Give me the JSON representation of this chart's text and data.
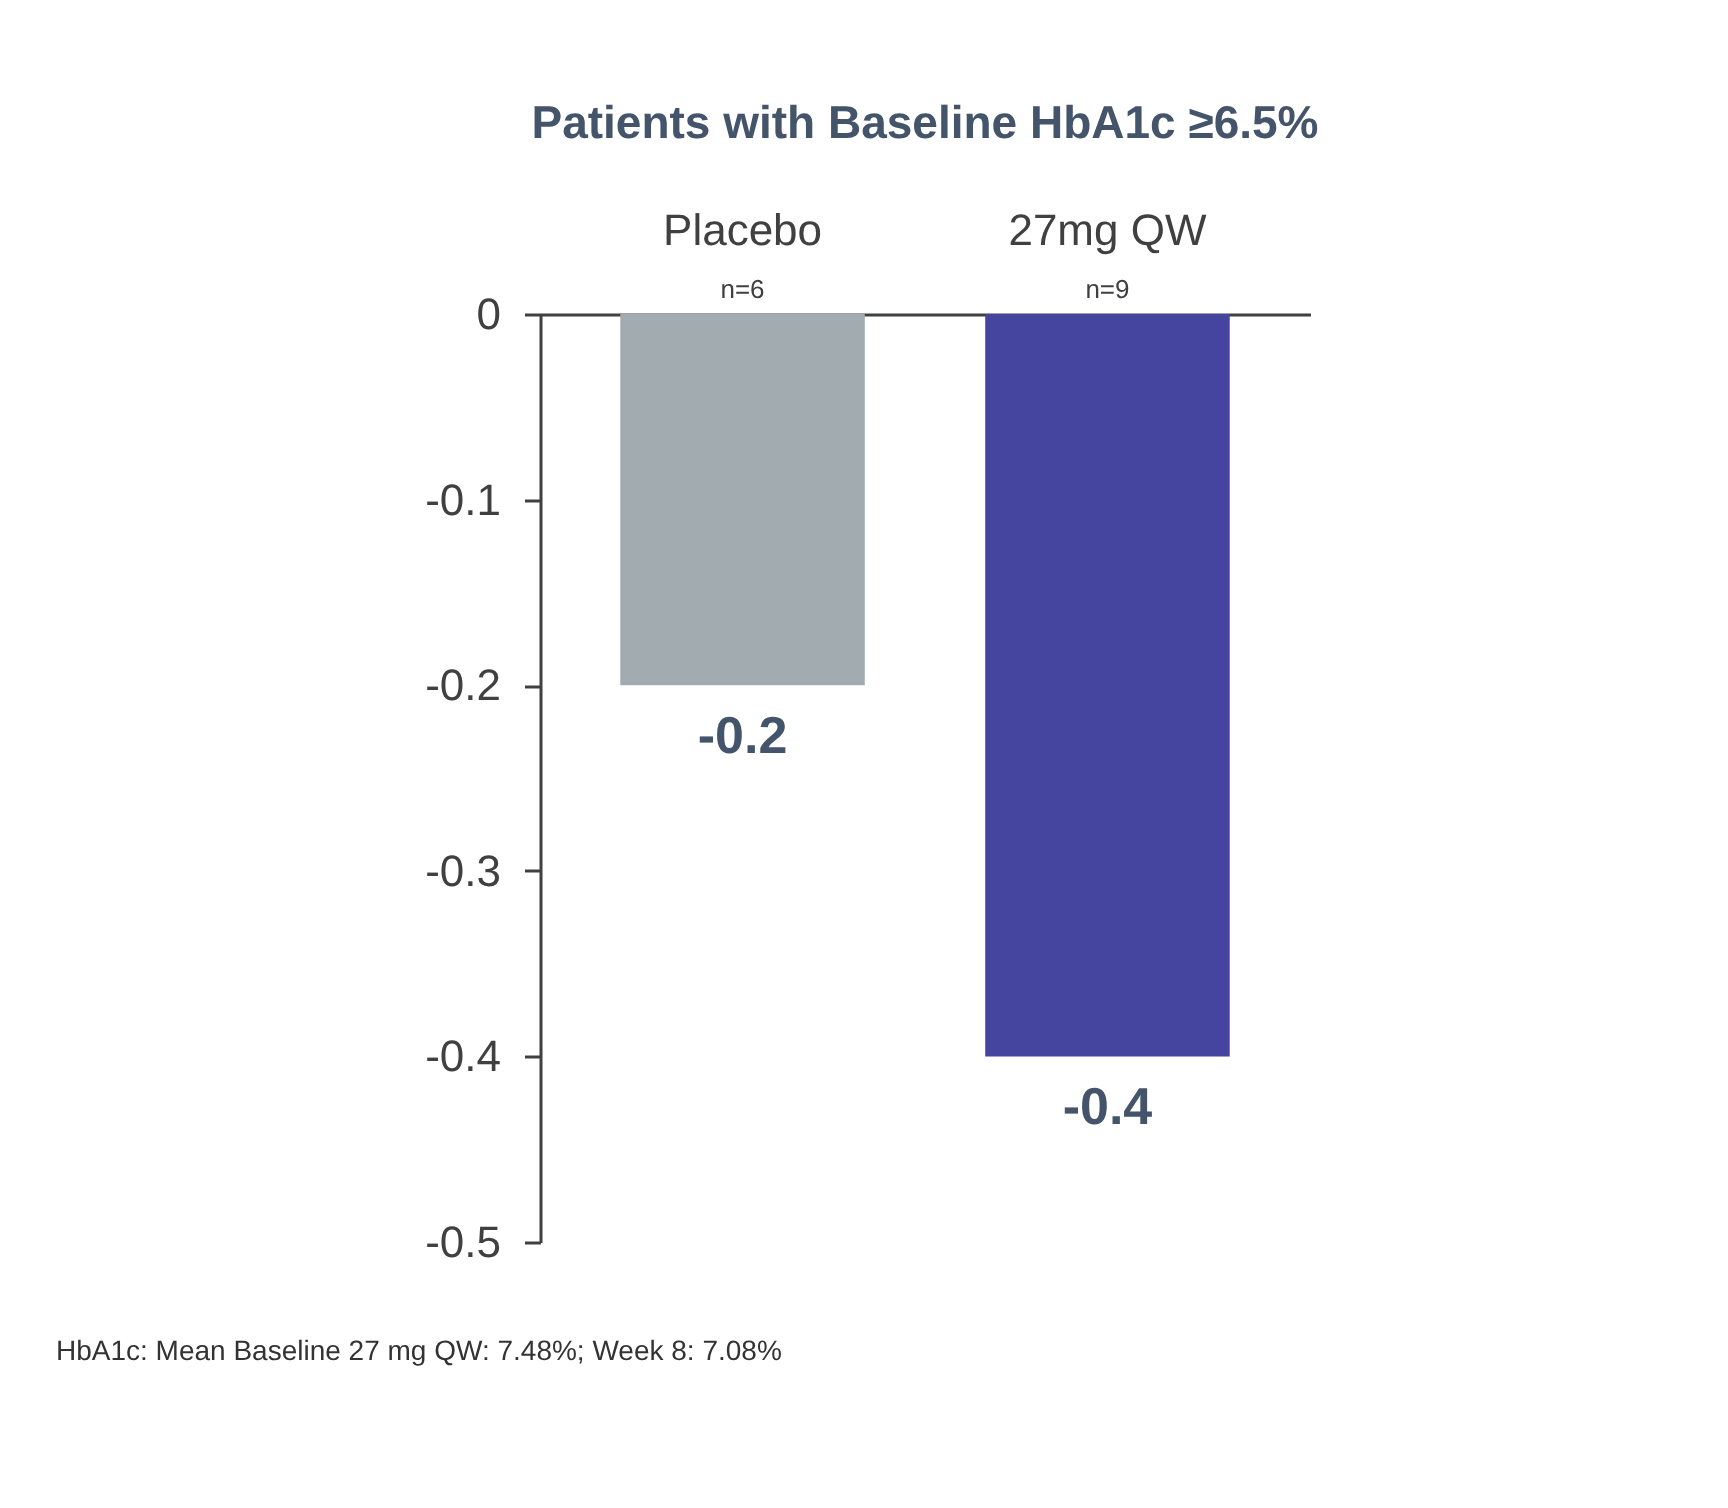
{
  "chart_data": {
    "type": "bar",
    "title": "Patients with Baseline HbA1c ≥6.5%",
    "categories": [
      "Placebo",
      "27mg QW"
    ],
    "values": [
      -0.2,
      -0.4
    ],
    "colors": [
      "#a2abb0",
      "#4545a0"
    ],
    "ylim": [
      -0.5,
      0
    ],
    "yticks": [
      0,
      -0.1,
      -0.2,
      -0.3,
      -0.4,
      -0.5
    ],
    "data_labels": true,
    "annotations": [
      {
        "text": "n=6",
        "x": "Placebo",
        "y": 0
      },
      {
        "text": "n=9",
        "x": "27mg QW",
        "y": 0
      },
      "HbA1c: Mean Baseline 27 mg QW: 7.48%; Week 8: 7.08%"
    ]
  }
}
